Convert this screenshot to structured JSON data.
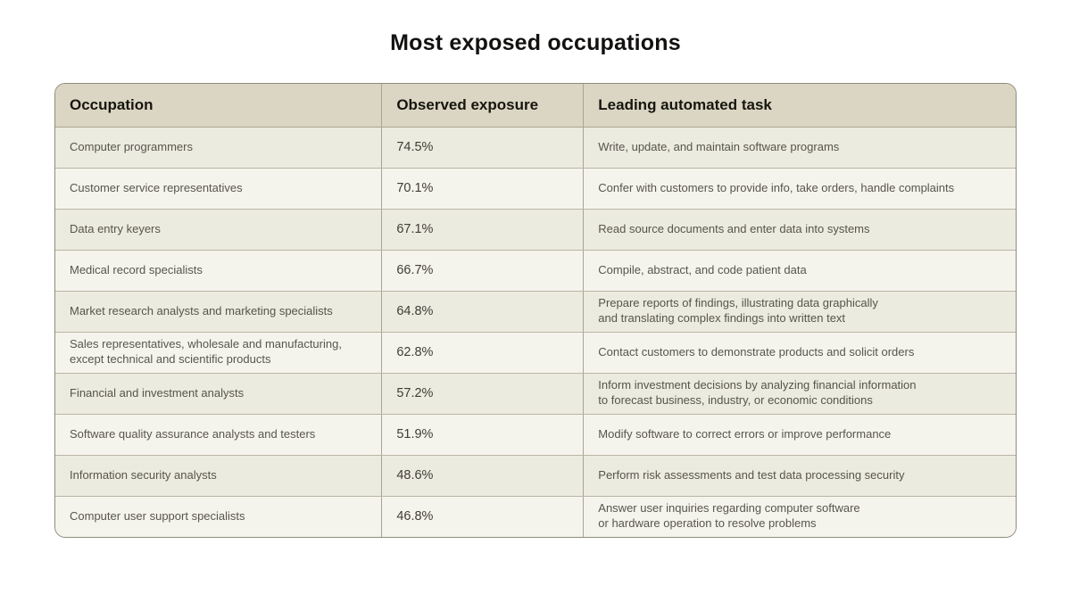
{
  "chart_data": {
    "type": "table",
    "title": "Most exposed occupations",
    "columns": [
      "Occupation",
      "Observed exposure",
      "Leading automated task"
    ],
    "rows": [
      {
        "occupation": "Computer programmers",
        "exposure": "74.5%",
        "task": "Write, update, and maintain software programs"
      },
      {
        "occupation": "Customer service representatives",
        "exposure": "70.1%",
        "task": "Confer with customers to provide info, take orders, handle complaints"
      },
      {
        "occupation": "Data entry keyers",
        "exposure": "67.1%",
        "task": "Read source documents and enter data into systems"
      },
      {
        "occupation": "Medical record specialists",
        "exposure": "66.7%",
        "task": "Compile, abstract, and code patient data"
      },
      {
        "occupation": "Market research analysts and marketing specialists",
        "exposure": "64.8%",
        "task": "Prepare reports of findings, illustrating data graphically\nand translating complex findings into written text"
      },
      {
        "occupation": "Sales representatives, wholesale and manufacturing,\nexcept technical and scientific products",
        "exposure": "62.8%",
        "task": "Contact customers to demonstrate products and solicit orders"
      },
      {
        "occupation": "Financial and investment analysts",
        "exposure": "57.2%",
        "task": "Inform investment decisions by analyzing financial information\nto forecast business, industry, or economic conditions"
      },
      {
        "occupation": "Software quality assurance analysts and testers",
        "exposure": "51.9%",
        "task": "Modify software to correct errors or improve performance"
      },
      {
        "occupation": "Information security analysts",
        "exposure": "48.6%",
        "task": "Perform risk assessments and test data processing security"
      },
      {
        "occupation": "Computer user support specialists",
        "exposure": "46.8%",
        "task": "Answer user inquiries regarding computer software\nor hardware operation to resolve problems"
      }
    ]
  }
}
